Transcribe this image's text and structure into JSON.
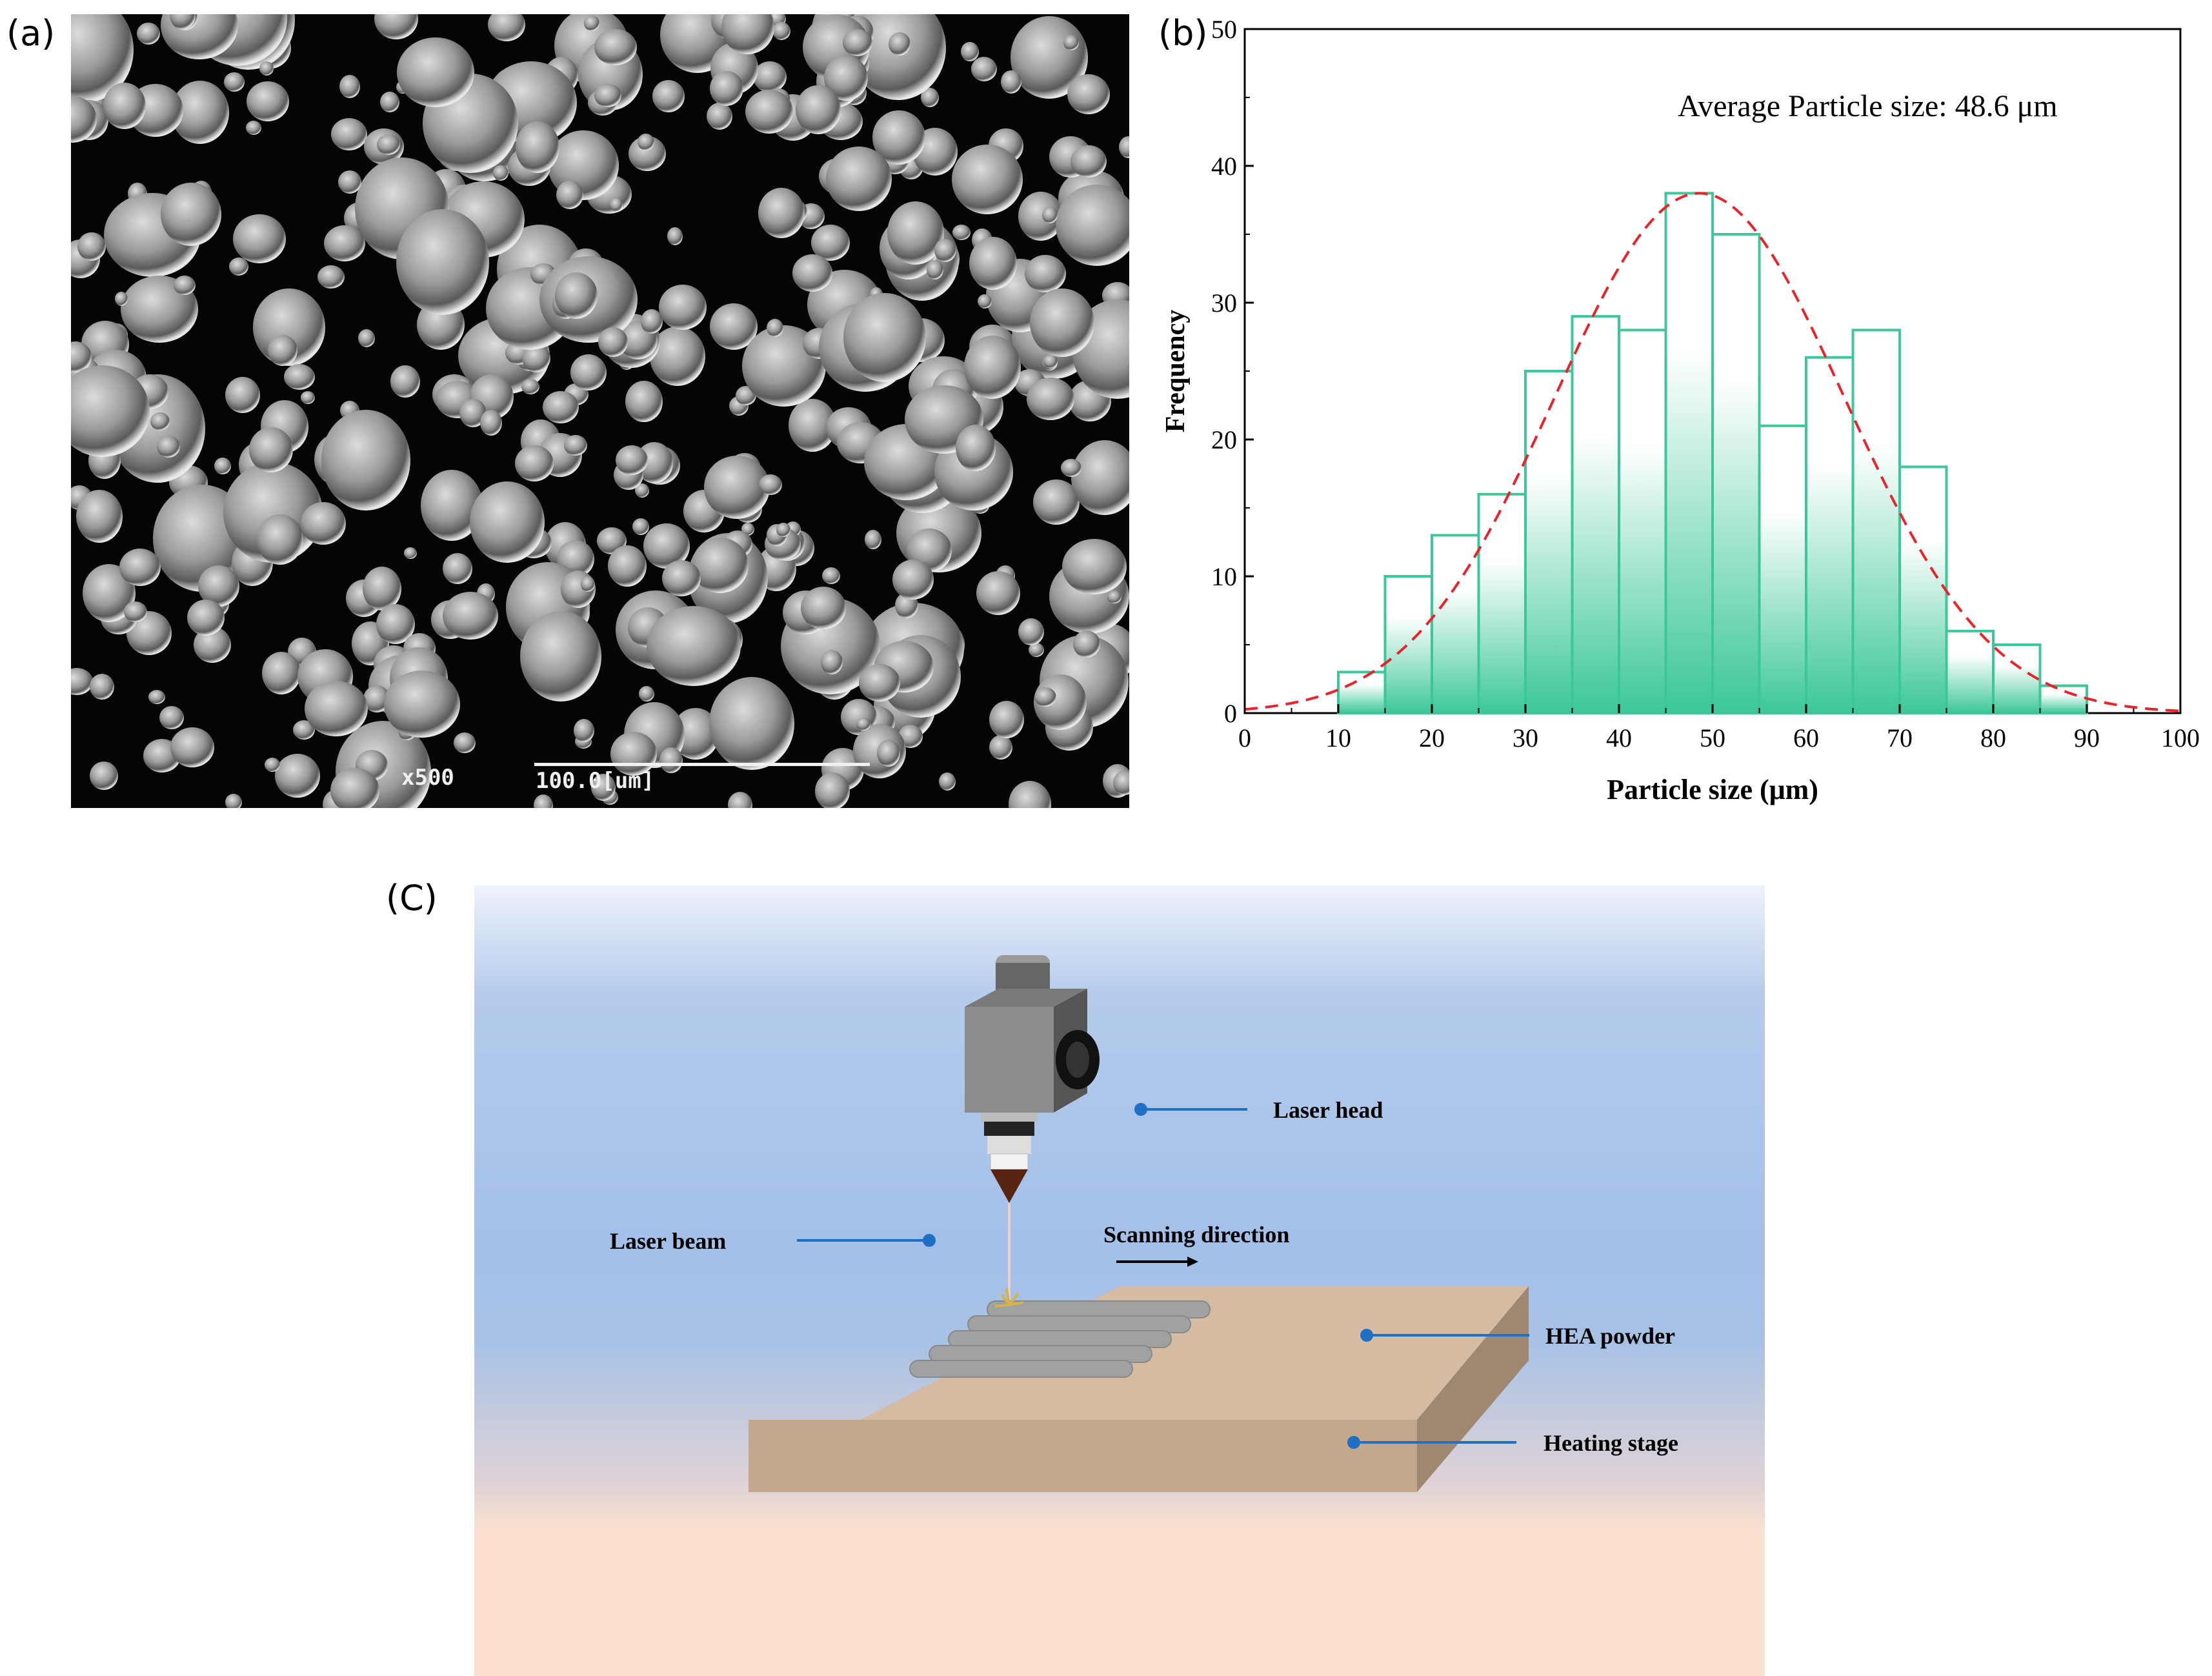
{
  "panel_labels": {
    "a": "(a)",
    "b": "(b)",
    "c": "(C)"
  },
  "sem": {
    "magnification": "x500",
    "scale_bar": "100.0[um]"
  },
  "chart_data": {
    "type": "bar",
    "title": "",
    "annotation": "Average Particle size: 48.6 μm",
    "xlabel": "Particle size (μm)",
    "ylabel": "Frequency",
    "xlim": [
      0,
      100
    ],
    "ylim": [
      0,
      50
    ],
    "xticks": [
      0,
      10,
      20,
      30,
      40,
      50,
      60,
      70,
      80,
      90,
      100
    ],
    "yticks": [
      0,
      10,
      20,
      30,
      40,
      50
    ],
    "bin_width": 5,
    "bins": [
      {
        "start": 10,
        "end": 15,
        "count": 3
      },
      {
        "start": 15,
        "end": 20,
        "count": 10
      },
      {
        "start": 20,
        "end": 25,
        "count": 13
      },
      {
        "start": 25,
        "end": 30,
        "count": 16
      },
      {
        "start": 30,
        "end": 35,
        "count": 25
      },
      {
        "start": 35,
        "end": 40,
        "count": 29
      },
      {
        "start": 40,
        "end": 45,
        "count": 28
      },
      {
        "start": 45,
        "end": 50,
        "count": 38
      },
      {
        "start": 50,
        "end": 55,
        "count": 35
      },
      {
        "start": 55,
        "end": 60,
        "count": 21
      },
      {
        "start": 60,
        "end": 65,
        "count": 26
      },
      {
        "start": 65,
        "end": 70,
        "count": 28
      },
      {
        "start": 70,
        "end": 75,
        "count": 18
      },
      {
        "start": 75,
        "end": 80,
        "count": 6
      },
      {
        "start": 80,
        "end": 85,
        "count": 5
      },
      {
        "start": 85,
        "end": 90,
        "count": 2
      }
    ],
    "fit_curve": {
      "type": "normal",
      "mean": 48.6,
      "sd": 15.5,
      "peak": 38
    },
    "bar_color": "#3cc79a",
    "curve_color": "#e8232a",
    "grid": false
  },
  "schematic": {
    "labels": {
      "laser_head": "Laser head",
      "laser_beam": "Laser beam",
      "scanning_direction": "Scanning direction",
      "hea_powder": "HEA powder",
      "heating_stage": "Heating stage"
    },
    "colors": {
      "leader_line": "#1f6fc4",
      "stage_top": "#d6bba3",
      "stage_front": "#c4a88e",
      "stage_side": "#a08770"
    }
  }
}
